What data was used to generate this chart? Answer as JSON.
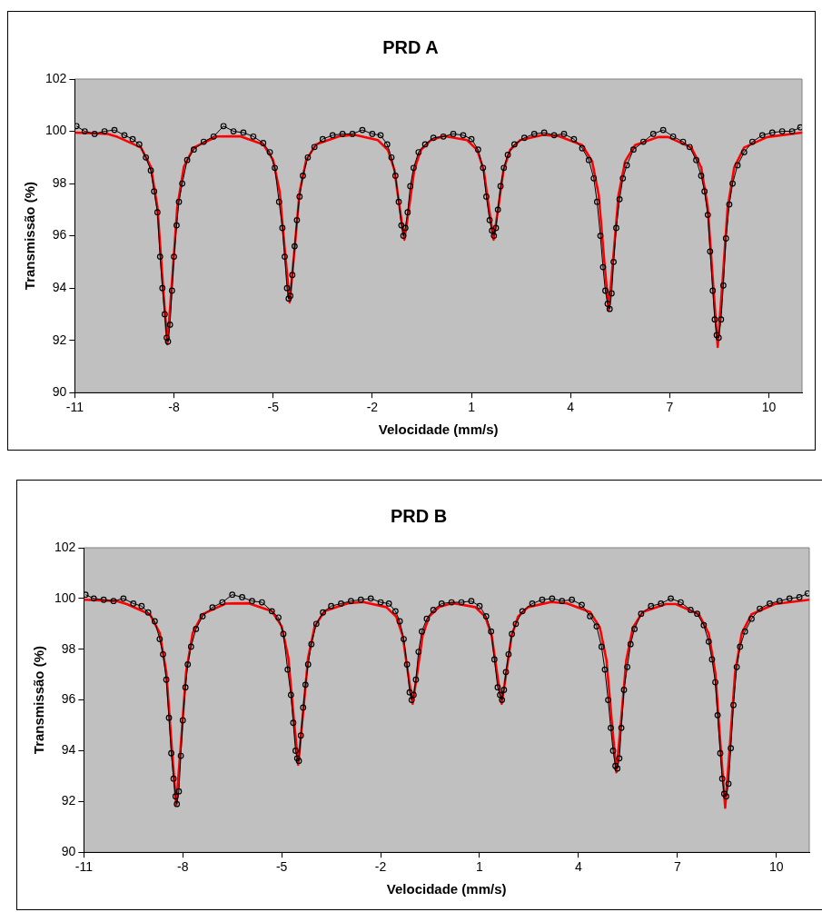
{
  "chart_data": [
    {
      "type": "line",
      "title": "PRD A",
      "xlabel": "Velocidade (mm/s)",
      "ylabel": "Transmissão (%)",
      "xlim": [
        -11,
        11
      ],
      "xticks": [
        -11,
        -8,
        -5,
        -2,
        1,
        4,
        7,
        10
      ],
      "ylim": [
        90,
        102
      ],
      "yticks": [
        90,
        92,
        94,
        96,
        98,
        100,
        102
      ],
      "grid": false,
      "legend": false,
      "series": [
        {
          "color": "#000000",
          "marker": "circle",
          "x": [
            -10.95,
            -10.7,
            -10.4,
            -10.1,
            -9.8,
            -9.5,
            -9.25,
            -9.05,
            -8.85,
            -8.7,
            -8.6,
            -8.5,
            -8.42,
            -8.35,
            -8.28,
            -8.22,
            -8.18,
            -8.12,
            -8.06,
            -8.0,
            -7.92,
            -7.85,
            -7.75,
            -7.6,
            -7.4,
            -7.1,
            -6.8,
            -6.5,
            -6.2,
            -5.9,
            -5.6,
            -5.3,
            -5.1,
            -4.95,
            -4.82,
            -4.72,
            -4.65,
            -4.58,
            -4.53,
            -4.48,
            -4.42,
            -4.35,
            -4.28,
            -4.2,
            -4.1,
            -3.95,
            -3.75,
            -3.5,
            -3.2,
            -2.9,
            -2.6,
            -2.3,
            -2.0,
            -1.75,
            -1.55,
            -1.42,
            -1.3,
            -1.2,
            -1.12,
            -1.06,
            -1.0,
            -0.93,
            -0.85,
            -0.75,
            -0.6,
            -0.4,
            -0.15,
            0.15,
            0.45,
            0.75,
            1.0,
            1.2,
            1.35,
            1.45,
            1.55,
            1.62,
            1.68,
            1.74,
            1.8,
            1.88,
            1.98,
            2.1,
            2.3,
            2.6,
            2.9,
            3.2,
            3.5,
            3.8,
            4.1,
            4.35,
            4.55,
            4.7,
            4.8,
            4.9,
            4.98,
            5.05,
            5.12,
            5.18,
            5.24,
            5.3,
            5.38,
            5.48,
            5.58,
            5.7,
            5.9,
            6.2,
            6.5,
            6.8,
            7.1,
            7.4,
            7.6,
            7.8,
            7.95,
            8.05,
            8.15,
            8.22,
            8.3,
            8.36,
            8.42,
            8.48,
            8.55,
            8.62,
            8.7,
            8.8,
            8.9,
            9.05,
            9.25,
            9.5,
            9.8,
            10.1,
            10.4,
            10.7,
            10.95
          ],
          "values": [
            100.2,
            100.0,
            99.9,
            100.0,
            100.05,
            99.85,
            99.7,
            99.5,
            99.0,
            98.5,
            97.7,
            96.9,
            95.2,
            94.0,
            93.0,
            92.1,
            91.95,
            92.6,
            93.9,
            95.2,
            96.4,
            97.3,
            98.0,
            98.9,
            99.3,
            99.6,
            99.8,
            100.2,
            100.0,
            99.95,
            99.8,
            99.55,
            99.2,
            98.6,
            97.3,
            96.3,
            95.2,
            94.0,
            93.6,
            93.7,
            94.5,
            95.6,
            96.6,
            97.5,
            98.3,
            99.0,
            99.4,
            99.7,
            99.85,
            99.9,
            99.9,
            100.05,
            99.9,
            99.85,
            99.5,
            99.0,
            98.3,
            97.3,
            96.4,
            96.0,
            96.3,
            96.9,
            97.9,
            98.6,
            99.2,
            99.5,
            99.75,
            99.8,
            99.9,
            99.85,
            99.7,
            99.3,
            98.6,
            97.5,
            96.6,
            96.2,
            96.0,
            96.3,
            97.0,
            97.9,
            98.6,
            99.1,
            99.5,
            99.75,
            99.9,
            99.95,
            99.85,
            99.9,
            99.7,
            99.35,
            98.9,
            98.2,
            97.3,
            96.0,
            94.8,
            93.9,
            93.4,
            93.2,
            93.8,
            95.0,
            96.3,
            97.4,
            98.2,
            98.7,
            99.3,
            99.6,
            99.9,
            100.05,
            99.8,
            99.6,
            99.4,
            98.9,
            98.3,
            97.7,
            96.8,
            95.4,
            93.9,
            92.8,
            92.2,
            92.1,
            92.8,
            94.1,
            95.9,
            97.2,
            98.0,
            98.7,
            99.2,
            99.6,
            99.85,
            99.95,
            100.0,
            100.0,
            100.15
          ]
        },
        {
          "color": "#ff0000",
          "marker": "none",
          "x": [
            -11,
            -10,
            -9.7,
            -9.0,
            -8.7,
            -8.5,
            -8.35,
            -8.2,
            -8.05,
            -7.9,
            -7.7,
            -7.4,
            -6.7,
            -6.0,
            -5.3,
            -5.0,
            -4.8,
            -4.65,
            -4.5,
            -4.35,
            -4.2,
            -4.0,
            -3.7,
            -3.0,
            -2.53,
            -1.83,
            -1.53,
            -1.33,
            -1.18,
            -1.03,
            -0.88,
            -0.73,
            -0.53,
            -0.23,
            0.17,
            0.87,
            1.17,
            1.37,
            1.52,
            1.67,
            1.82,
            1.97,
            2.17,
            2.47,
            3.17,
            3.65,
            4.35,
            4.65,
            4.85,
            5.0,
            5.15,
            5.3,
            5.45,
            5.65,
            5.95,
            6.65,
            6.95,
            7.65,
            7.95,
            8.15,
            8.3,
            8.45,
            8.6,
            8.75,
            8.95,
            9.25,
            9.95,
            11
          ],
          "values": [
            99.95,
            99.9,
            99.78,
            99.38,
            98.64,
            97.1,
            94.42,
            91.85,
            94.42,
            97.1,
            98.64,
            99.38,
            99.8,
            99.81,
            99.5,
            98.9,
            97.67,
            95.51,
            93.45,
            95.51,
            97.67,
            98.9,
            99.5,
            99.81,
            99.86,
            99.66,
            99.29,
            98.52,
            97.15,
            95.85,
            97.15,
            98.52,
            99.29,
            99.66,
            99.82,
            99.66,
            99.29,
            98.52,
            97.15,
            95.85,
            97.15,
            98.52,
            99.29,
            99.66,
            99.86,
            99.81,
            99.47,
            98.85,
            97.57,
            95.31,
            93.15,
            95.31,
            97.57,
            98.85,
            99.47,
            99.78,
            99.78,
            99.38,
            98.62,
            97.08,
            94.35,
            91.75,
            94.35,
            97.08,
            98.62,
            99.38,
            99.78,
            99.95
          ]
        }
      ]
    },
    {
      "type": "line",
      "title": "PRD B",
      "xlabel": "Velocidade (mm/s)",
      "ylabel": "Transmissão (%)",
      "xlim": [
        -11,
        11
      ],
      "xticks": [
        -11,
        -8,
        -5,
        -2,
        1,
        4,
        7,
        10
      ],
      "ylim": [
        90,
        102
      ],
      "yticks": [
        90,
        92,
        94,
        96,
        98,
        100,
        102
      ],
      "grid": false,
      "legend": false,
      "series": [
        {
          "color": "#000000",
          "marker": "circle",
          "x": [
            -10.95,
            -10.7,
            -10.4,
            -10.1,
            -9.8,
            -9.5,
            -9.25,
            -9.05,
            -8.85,
            -8.7,
            -8.6,
            -8.5,
            -8.42,
            -8.35,
            -8.28,
            -8.22,
            -8.18,
            -8.12,
            -8.06,
            -8.0,
            -7.92,
            -7.85,
            -7.75,
            -7.6,
            -7.4,
            -7.1,
            -6.8,
            -6.5,
            -6.2,
            -5.9,
            -5.6,
            -5.3,
            -5.1,
            -4.95,
            -4.82,
            -4.72,
            -4.65,
            -4.58,
            -4.53,
            -4.48,
            -4.42,
            -4.35,
            -4.28,
            -4.2,
            -4.1,
            -3.95,
            -3.75,
            -3.5,
            -3.2,
            -2.9,
            -2.6,
            -2.3,
            -2.0,
            -1.75,
            -1.55,
            -1.42,
            -1.3,
            -1.2,
            -1.12,
            -1.06,
            -1.0,
            -0.93,
            -0.85,
            -0.75,
            -0.6,
            -0.4,
            -0.15,
            0.15,
            0.45,
            0.75,
            1.0,
            1.2,
            1.35,
            1.45,
            1.55,
            1.62,
            1.68,
            1.74,
            1.8,
            1.88,
            1.98,
            2.1,
            2.3,
            2.6,
            2.9,
            3.2,
            3.5,
            3.8,
            4.1,
            4.35,
            4.55,
            4.7,
            4.8,
            4.9,
            4.98,
            5.05,
            5.12,
            5.18,
            5.24,
            5.3,
            5.38,
            5.48,
            5.58,
            5.7,
            5.9,
            6.2,
            6.5,
            6.8,
            7.1,
            7.4,
            7.6,
            7.8,
            7.95,
            8.05,
            8.15,
            8.22,
            8.3,
            8.36,
            8.42,
            8.48,
            8.55,
            8.62,
            8.7,
            8.8,
            8.9,
            9.05,
            9.25,
            9.5,
            9.8,
            10.1,
            10.4,
            10.7,
            10.95
          ],
          "values": [
            100.15,
            100.0,
            99.95,
            99.9,
            100.0,
            99.8,
            99.7,
            99.45,
            99.1,
            98.4,
            97.8,
            96.8,
            95.3,
            93.9,
            92.9,
            92.2,
            91.9,
            92.4,
            93.8,
            95.2,
            96.5,
            97.4,
            98.1,
            98.8,
            99.3,
            99.65,
            99.85,
            100.15,
            100.05,
            99.9,
            99.85,
            99.5,
            99.25,
            98.6,
            97.2,
            96.2,
            95.1,
            94.0,
            93.7,
            93.6,
            94.6,
            95.7,
            96.6,
            97.4,
            98.2,
            99.0,
            99.45,
            99.7,
            99.8,
            99.9,
            99.95,
            100.0,
            99.85,
            99.8,
            99.5,
            99.1,
            98.4,
            97.4,
            96.3,
            96.0,
            96.2,
            96.8,
            97.9,
            98.7,
            99.2,
            99.55,
            99.8,
            99.85,
            99.85,
            99.9,
            99.7,
            99.3,
            98.7,
            97.6,
            96.5,
            96.2,
            96.0,
            96.4,
            97.1,
            97.8,
            98.6,
            99.0,
            99.5,
            99.8,
            99.95,
            100.0,
            99.9,
            99.95,
            99.75,
            99.3,
            98.9,
            98.1,
            97.2,
            96.0,
            94.9,
            94.0,
            93.4,
            93.3,
            93.7,
            94.9,
            96.4,
            97.3,
            98.2,
            98.8,
            99.4,
            99.7,
            99.8,
            100.0,
            99.85,
            99.55,
            99.4,
            98.95,
            98.3,
            97.6,
            96.7,
            95.4,
            93.9,
            92.9,
            92.3,
            92.2,
            92.7,
            94.1,
            95.8,
            97.3,
            98.1,
            98.7,
            99.2,
            99.6,
            99.8,
            99.9,
            100.0,
            100.05,
            100.2
          ]
        },
        {
          "color": "#ff0000",
          "marker": "none",
          "x": [
            -11,
            -10,
            -9.7,
            -9.0,
            -8.7,
            -8.5,
            -8.35,
            -8.2,
            -8.05,
            -7.9,
            -7.7,
            -7.4,
            -6.7,
            -6.0,
            -5.3,
            -5.0,
            -4.8,
            -4.65,
            -4.5,
            -4.35,
            -4.2,
            -4.0,
            -3.7,
            -3.0,
            -2.53,
            -1.83,
            -1.53,
            -1.33,
            -1.18,
            -1.03,
            -0.88,
            -0.73,
            -0.53,
            -0.23,
            0.17,
            0.87,
            1.17,
            1.37,
            1.52,
            1.67,
            1.82,
            1.97,
            2.17,
            2.47,
            3.17,
            3.65,
            4.35,
            4.65,
            4.85,
            5.0,
            5.15,
            5.3,
            5.45,
            5.65,
            5.95,
            6.65,
            6.95,
            7.65,
            7.95,
            8.15,
            8.3,
            8.45,
            8.6,
            8.75,
            8.95,
            9.25,
            9.95,
            11
          ],
          "values": [
            99.95,
            99.9,
            99.78,
            99.38,
            98.64,
            97.1,
            94.42,
            91.85,
            94.42,
            97.1,
            98.64,
            99.38,
            99.8,
            99.81,
            99.5,
            98.9,
            97.67,
            95.51,
            93.45,
            95.51,
            97.67,
            98.9,
            99.5,
            99.81,
            99.86,
            99.66,
            99.29,
            98.52,
            97.15,
            95.85,
            97.15,
            98.52,
            99.29,
            99.66,
            99.82,
            99.66,
            99.29,
            98.52,
            97.15,
            95.85,
            97.15,
            98.52,
            99.29,
            99.66,
            99.86,
            99.81,
            99.47,
            98.85,
            97.57,
            95.31,
            93.15,
            95.31,
            97.57,
            98.85,
            99.47,
            99.78,
            99.78,
            99.38,
            98.62,
            97.08,
            94.35,
            91.75,
            94.35,
            97.08,
            98.62,
            99.38,
            99.78,
            99.95
          ]
        }
      ]
    }
  ]
}
